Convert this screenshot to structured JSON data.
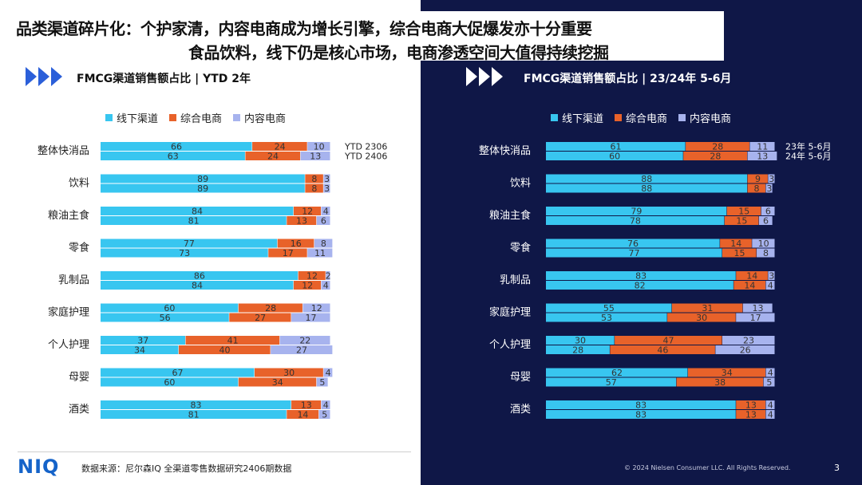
{
  "slide": {
    "title_prefix": "品类渠道碎片化：",
    "title_line1": "个护家清，内容电商成为增长引擎，综合电商大促爆发亦十分重要",
    "title_line2": "食品饮料，线下仍是核心市场，电商渗透空间大值得持续挖掘",
    "page_number": "3",
    "logo": "NIQ",
    "source": "数据来源：尼尔森IQ 全渠道零售数据研究2406期数据",
    "copyright": "© 2024 Nielsen Consumer LLC. All Rights Reserved."
  },
  "colors": {
    "offline": "#38c6f0",
    "general_ecom": "#e8622a",
    "content_ecom": "#a7b3ee",
    "dark_bg": "#0f1747",
    "arrow": "#2b5fd9"
  },
  "legend": [
    "线下渠道",
    "综合电商",
    "内容电商"
  ],
  "chart_data": [
    {
      "type": "bar",
      "orientation": "horizontal-stacked-100",
      "title": "FMCG渠道销售额占比 | YTD 2年",
      "categories": [
        "整体快消品",
        "饮料",
        "粮油主食",
        "零食",
        "乳制品",
        "家庭护理",
        "个人护理",
        "母婴",
        "酒类"
      ],
      "periods": [
        "YTD 2306",
        "YTD 2406"
      ],
      "series": [
        {
          "name": "线下渠道",
          "values": [
            [
              66,
              63
            ],
            [
              89,
              89
            ],
            [
              84,
              81
            ],
            [
              77,
              73
            ],
            [
              86,
              84
            ],
            [
              60,
              56
            ],
            [
              37,
              34
            ],
            [
              67,
              60
            ],
            [
              83,
              81
            ]
          ]
        },
        {
          "name": "综合电商",
          "values": [
            [
              24,
              24
            ],
            [
              8,
              8
            ],
            [
              12,
              13
            ],
            [
              16,
              17
            ],
            [
              12,
              12
            ],
            [
              28,
              27
            ],
            [
              41,
              40
            ],
            [
              30,
              34
            ],
            [
              13,
              14
            ]
          ]
        },
        {
          "name": "内容电商",
          "values": [
            [
              10,
              13
            ],
            [
              3,
              3
            ],
            [
              4,
              6
            ],
            [
              8,
              11
            ],
            [
              2,
              4
            ],
            [
              12,
              17
            ],
            [
              22,
              27
            ],
            [
              4,
              5
            ],
            [
              4,
              5
            ]
          ]
        }
      ],
      "xlim": [
        0,
        100
      ]
    },
    {
      "type": "bar",
      "orientation": "horizontal-stacked-100",
      "title": "FMCG渠道销售额占比 | 23/24年 5-6月",
      "categories": [
        "整体快消品",
        "饮料",
        "粮油主食",
        "零食",
        "乳制品",
        "家庭护理",
        "个人护理",
        "母婴",
        "酒类"
      ],
      "periods": [
        "23年 5-6月",
        "24年 5-6月"
      ],
      "series": [
        {
          "name": "线下渠道",
          "values": [
            [
              61,
              60
            ],
            [
              88,
              88
            ],
            [
              79,
              78
            ],
            [
              76,
              77
            ],
            [
              83,
              82
            ],
            [
              55,
              53
            ],
            [
              30,
              28
            ],
            [
              62,
              57
            ],
            [
              83,
              83
            ]
          ]
        },
        {
          "name": "综合电商",
          "values": [
            [
              28,
              28
            ],
            [
              9,
              8
            ],
            [
              15,
              15
            ],
            [
              14,
              15
            ],
            [
              14,
              14
            ],
            [
              31,
              30
            ],
            [
              47,
              46
            ],
            [
              34,
              38
            ],
            [
              13,
              13
            ]
          ]
        },
        {
          "name": "内容电商",
          "values": [
            [
              11,
              13
            ],
            [
              3,
              3
            ],
            [
              6,
              6
            ],
            [
              10,
              8
            ],
            [
              3,
              4
            ],
            [
              13,
              17
            ],
            [
              23,
              26
            ],
            [
              4,
              5
            ],
            [
              4,
              4
            ]
          ]
        }
      ],
      "xlim": [
        0,
        100
      ]
    }
  ]
}
